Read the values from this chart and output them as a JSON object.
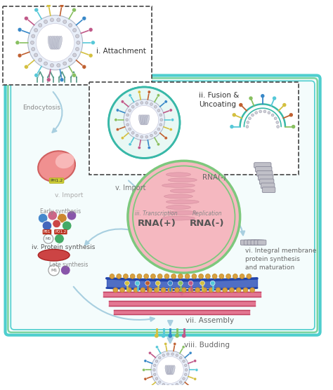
{
  "background_color": "#ffffff",
  "cell_border_color": "#4ecece",
  "cell_border_color2": "#7dd4a0",
  "arrow_color_light": "#a8cfe0",
  "arrow_color_blue": "#3399cc",
  "text_color": "#666666",
  "nucleus_fill": "#f5b8c0",
  "nucleus_border": "#7dc87d",
  "membrane_blue": "#3355aa",
  "membrane_pink": "#e06080",
  "rna_color": "#e8a0b0",
  "figsize": [
    4.74,
    5.56
  ],
  "dpi": 100,
  "labels": {
    "i": "i. Attachment",
    "ii_fusion": "ii. Fusion &",
    "ii_uncoating": "Uncoating",
    "iii_transcription": "iii. Transcription",
    "replication": "Replication",
    "rna_plus": "RNA(+)",
    "rna_minus_outer": "RNA(-)",
    "rna_minus_inner": "RNA(-)",
    "iv": "iv. Protein synthesis",
    "v": "v. Import",
    "vi_line1": "vi. Integral membrane",
    "vi_line2": "protein synthesis",
    "vi_line3": "and maturation",
    "vii": "vii. Assembly",
    "viii": "viii. Budding",
    "endocytosis": "Endocytosis",
    "early_synthesis": "Early synthesis",
    "late_synthesis": "Late synthesis"
  }
}
